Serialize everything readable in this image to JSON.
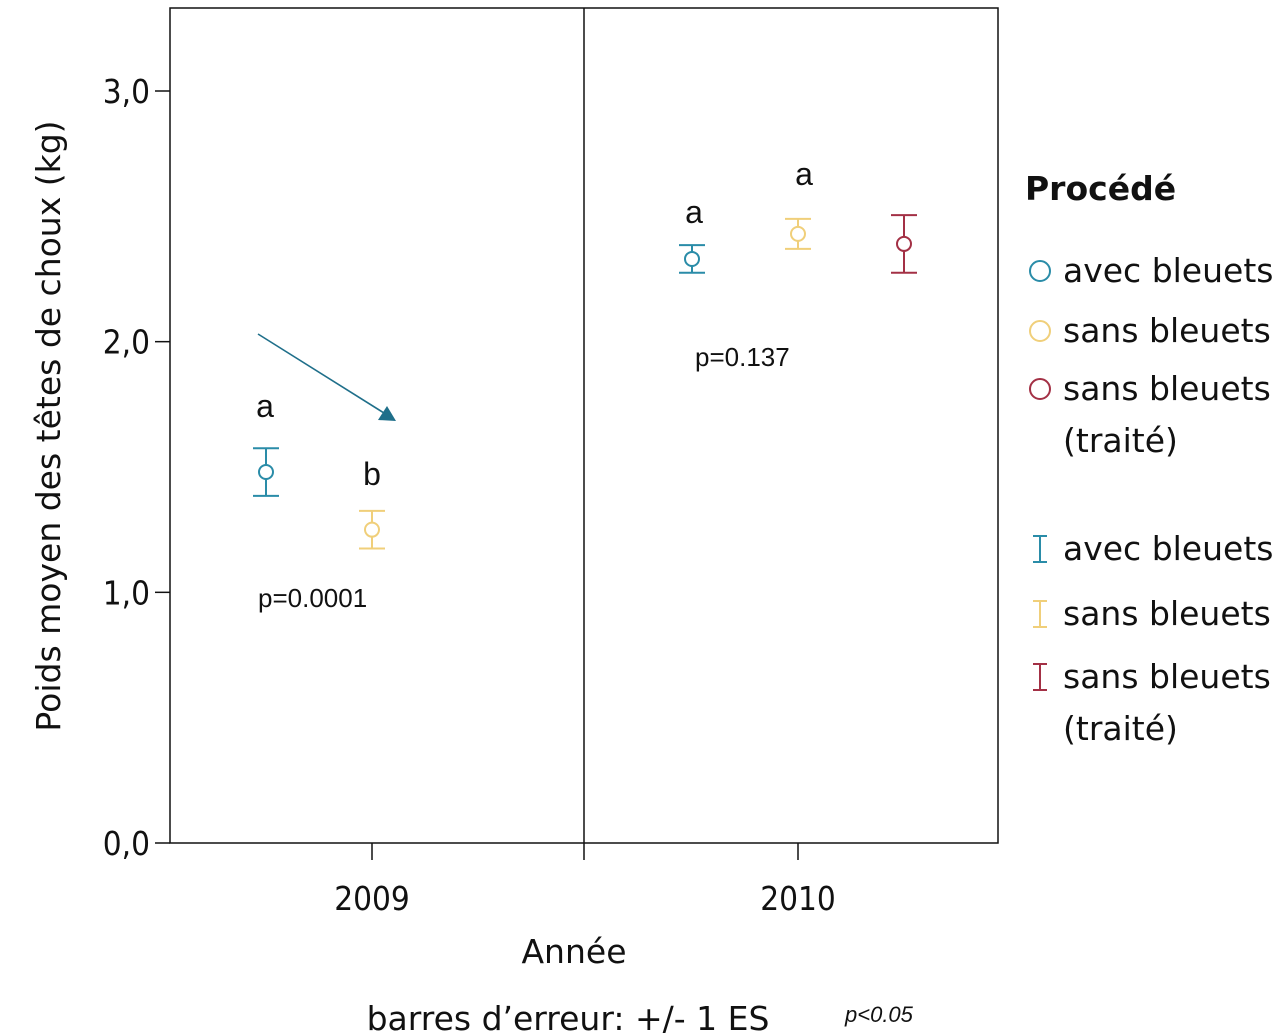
{
  "chart_data": {
    "type": "scatter",
    "xlabel": "Année",
    "ylabel": "Poids moyen des têtes de choux (kg)",
    "footnote": "barres d’erreur: +/- 1 ES",
    "ylim": [
      0,
      3.3
    ],
    "yticks": [
      "0,0",
      "1,0",
      "2,0",
      "3,0"
    ],
    "ytick_values": [
      0,
      1,
      2,
      3
    ],
    "categories": [
      "2009",
      "2010"
    ],
    "grid": false,
    "legend_position": "right",
    "series": [
      {
        "name": "avec bleuets",
        "color": "#2a8ca8",
        "points": [
          {
            "x": "2009",
            "y": 1.48,
            "err": 0.095
          },
          {
            "x": "2010",
            "y": 2.33,
            "err": 0.055
          }
        ]
      },
      {
        "name": "sans bleuets",
        "color": "#f0cf7a",
        "points": [
          {
            "x": "2009",
            "y": 1.25,
            "err": 0.075
          },
          {
            "x": "2010",
            "y": 2.43,
            "err": 0.06
          }
        ]
      },
      {
        "name": "sans bleuets (traité)",
        "color": "#a33045",
        "points": [
          {
            "x": "2010",
            "y": 2.39,
            "err": 0.115
          }
        ]
      }
    ],
    "legend": {
      "title": "Procédé",
      "point_entries": [
        {
          "lines": [
            "avec bleuets"
          ],
          "color": "#2a8ca8"
        },
        {
          "lines": [
            "sans bleuets"
          ],
          "color": "#f0cf7a"
        },
        {
          "lines": [
            "sans bleuets",
            "(traité)"
          ],
          "color": "#a33045"
        }
      ],
      "error_entries": [
        {
          "lines": [
            "avec bleuets"
          ],
          "color": "#2a8ca8"
        },
        {
          "lines": [
            "sans bleuets"
          ],
          "color": "#f0cf7a"
        },
        {
          "lines": [
            "sans bleuets",
            "(traité)"
          ],
          "color": "#a33045"
        }
      ]
    },
    "annotations": {
      "letters_2009": [
        "a",
        "b"
      ],
      "letters_2010": [
        "a",
        "a"
      ],
      "p_2009": "p=0.0001",
      "p_2010": "p=0.137",
      "significance": "p<0.05",
      "arrow_color": "#1f6f8a"
    }
  }
}
